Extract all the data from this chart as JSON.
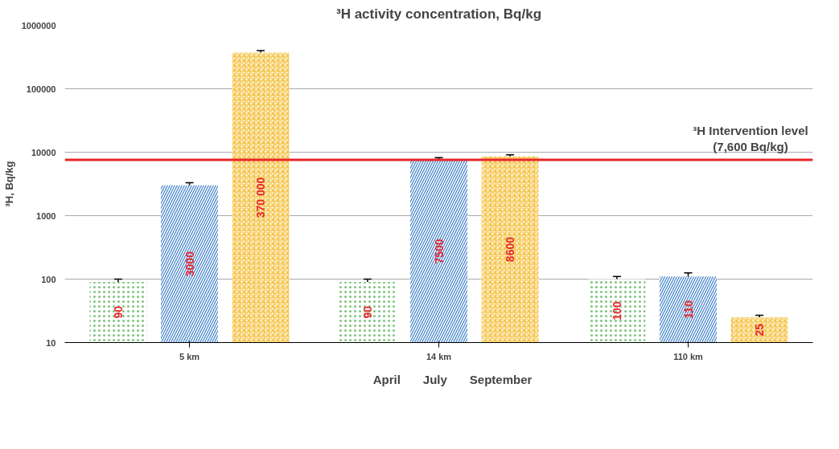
{
  "chart_data": {
    "type": "bar",
    "title": "³H activity concentration, Bq/kg",
    "ylabel": "³H, Bq/kg",
    "categories": [
      "5 km",
      "14 km",
      "110 km"
    ],
    "series": [
      {
        "name": "April",
        "color": "#7cc47a",
        "values": [
          90,
          90,
          100
        ],
        "errors": [
          10,
          10,
          10
        ],
        "value_labels": [
          "90",
          "90",
          "100"
        ]
      },
      {
        "name": "July",
        "color": "#3a7dc9",
        "values": [
          3000,
          7500,
          110
        ],
        "errors": [
          300,
          700,
          15
        ],
        "value_labels": [
          "3000",
          "7500",
          "110"
        ]
      },
      {
        "name": "September",
        "color": "#f5c242",
        "values": [
          370000,
          8600,
          25
        ],
        "errors": [
          30000,
          500,
          2
        ],
        "value_labels": [
          "370 000",
          "8600",
          "25"
        ]
      }
    ],
    "log": true,
    "ylim": [
      10,
      1000000
    ],
    "yticks": [
      10,
      100,
      1000,
      10000,
      100000,
      1000000
    ],
    "grid": "y",
    "legend": "bottom",
    "ref_lines": [
      {
        "axis": "y",
        "value": 7600,
        "label": "³H Intervention level\n(7,600 Bq/kg)",
        "color": "#e8262a"
      }
    ]
  }
}
